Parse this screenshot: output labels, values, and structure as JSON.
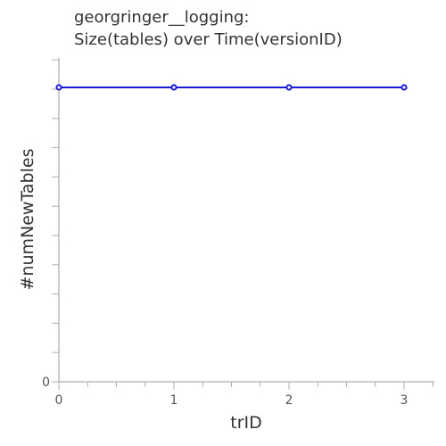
{
  "chart_data": {
    "type": "line",
    "title_lines": [
      "georgringer__logging:",
      "Size(tables) over Time(versionID)"
    ],
    "xlabel": "trID",
    "ylabel": "#numNewTables",
    "x": [
      0,
      1,
      2,
      3
    ],
    "series": [
      {
        "values": [
          10,
          10,
          10,
          10
        ]
      }
    ],
    "xlim": [
      0,
      3.25
    ],
    "ylim": [
      0,
      10.3
    ],
    "x_ticks": [
      "0",
      "1",
      "2",
      "3"
    ],
    "y_ticks_labeled": [
      "0"
    ],
    "grid": false,
    "colors": {
      "series": "#1a1adb",
      "text": "#333333",
      "axis": "#9a9a9a"
    }
  }
}
